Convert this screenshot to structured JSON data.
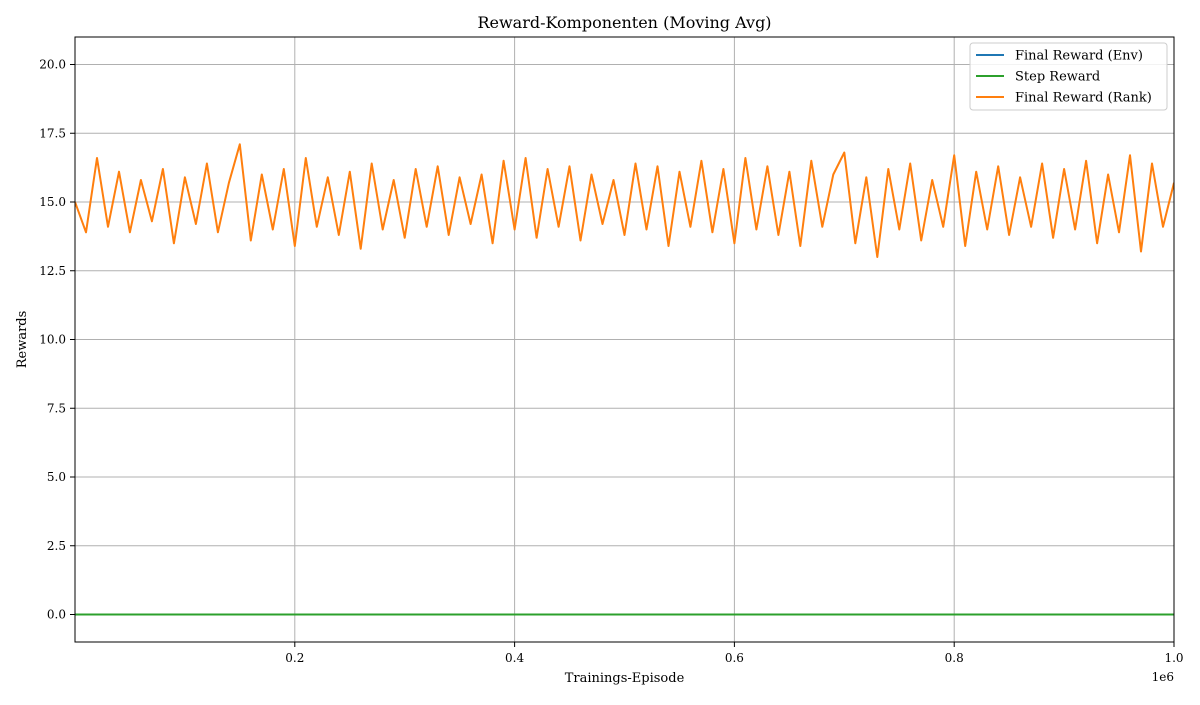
{
  "chart_data": {
    "type": "line",
    "title": "Reward-Komponenten (Moving Avg)",
    "xlabel": "Trainings-Episode",
    "ylabel": "Rewards",
    "x_offset_label": "1e6",
    "xlim": [
      0,
      1.0
    ],
    "ylim": [
      -1.0,
      21.0
    ],
    "x_ticks": [
      0.2,
      0.4,
      0.6,
      0.8,
      1.0
    ],
    "x_tick_labels": [
      "0.2",
      "0.4",
      "0.6",
      "0.8",
      "1.0"
    ],
    "y_ticks": [
      0.0,
      2.5,
      5.0,
      7.5,
      10.0,
      12.5,
      15.0,
      17.5,
      20.0
    ],
    "y_tick_labels": [
      "0.0",
      "2.5",
      "5.0",
      "7.5",
      "10.0",
      "12.5",
      "15.0",
      "17.5",
      "20.0"
    ],
    "grid": true,
    "legend_position": "top-right",
    "series": [
      {
        "name": "Final Reward (Env)",
        "color": "#1f77b4",
        "x": [
          0.0,
          1.0
        ],
        "y": [
          0.0,
          0.0
        ]
      },
      {
        "name": "Step Reward",
        "color": "#2ca02c",
        "x": [
          0.0,
          1.0
        ],
        "y": [
          0.0,
          0.0
        ]
      },
      {
        "name": "Final Reward (Rank)",
        "color": "#ff7f0e",
        "x": [
          0.0,
          0.01,
          0.02,
          0.03,
          0.04,
          0.05,
          0.06,
          0.07,
          0.08,
          0.09,
          0.1,
          0.11,
          0.12,
          0.13,
          0.14,
          0.15,
          0.16,
          0.17,
          0.18,
          0.19,
          0.2,
          0.21,
          0.22,
          0.23,
          0.24,
          0.25,
          0.26,
          0.27,
          0.28,
          0.29,
          0.3,
          0.31,
          0.32,
          0.33,
          0.34,
          0.35,
          0.36,
          0.37,
          0.38,
          0.39,
          0.4,
          0.41,
          0.42,
          0.43,
          0.44,
          0.45,
          0.46,
          0.47,
          0.48,
          0.49,
          0.5,
          0.51,
          0.52,
          0.53,
          0.54,
          0.55,
          0.56,
          0.57,
          0.58,
          0.59,
          0.6,
          0.61,
          0.62,
          0.63,
          0.64,
          0.65,
          0.66,
          0.67,
          0.68,
          0.69,
          0.7,
          0.71,
          0.72,
          0.73,
          0.74,
          0.75,
          0.76,
          0.77,
          0.78,
          0.79,
          0.8,
          0.81,
          0.82,
          0.83,
          0.84,
          0.85,
          0.86,
          0.87,
          0.88,
          0.89,
          0.9,
          0.91,
          0.92,
          0.93,
          0.94,
          0.95,
          0.96,
          0.97,
          0.98,
          0.99,
          1.0
        ],
        "y": [
          15.0,
          13.9,
          16.6,
          14.1,
          16.1,
          13.9,
          15.8,
          14.3,
          16.2,
          13.5,
          15.9,
          14.2,
          16.4,
          13.9,
          15.7,
          17.1,
          13.6,
          16.0,
          14.0,
          16.2,
          13.4,
          16.6,
          14.1,
          15.9,
          13.8,
          16.1,
          13.3,
          16.4,
          14.0,
          15.8,
          13.7,
          16.2,
          14.1,
          16.3,
          13.8,
          15.9,
          14.2,
          16.0,
          13.5,
          16.5,
          14.0,
          16.6,
          13.7,
          16.2,
          14.1,
          16.3,
          13.6,
          16.0,
          14.2,
          15.8,
          13.8,
          16.4,
          14.0,
          16.3,
          13.4,
          16.1,
          14.1,
          16.5,
          13.9,
          16.2,
          13.5,
          16.6,
          14.0,
          16.3,
          13.8,
          16.1,
          13.4,
          16.5,
          14.1,
          16.0,
          16.8,
          13.5,
          15.9,
          13.0,
          16.2,
          14.0,
          16.4,
          13.6,
          15.8,
          14.1,
          16.7,
          13.4,
          16.1,
          14.0,
          16.3,
          13.8,
          15.9,
          14.1,
          16.4,
          13.7,
          16.2,
          14.0,
          16.5,
          13.5,
          16.0,
          13.9,
          16.7,
          13.2,
          16.4,
          14.1,
          15.7
        ]
      }
    ]
  }
}
